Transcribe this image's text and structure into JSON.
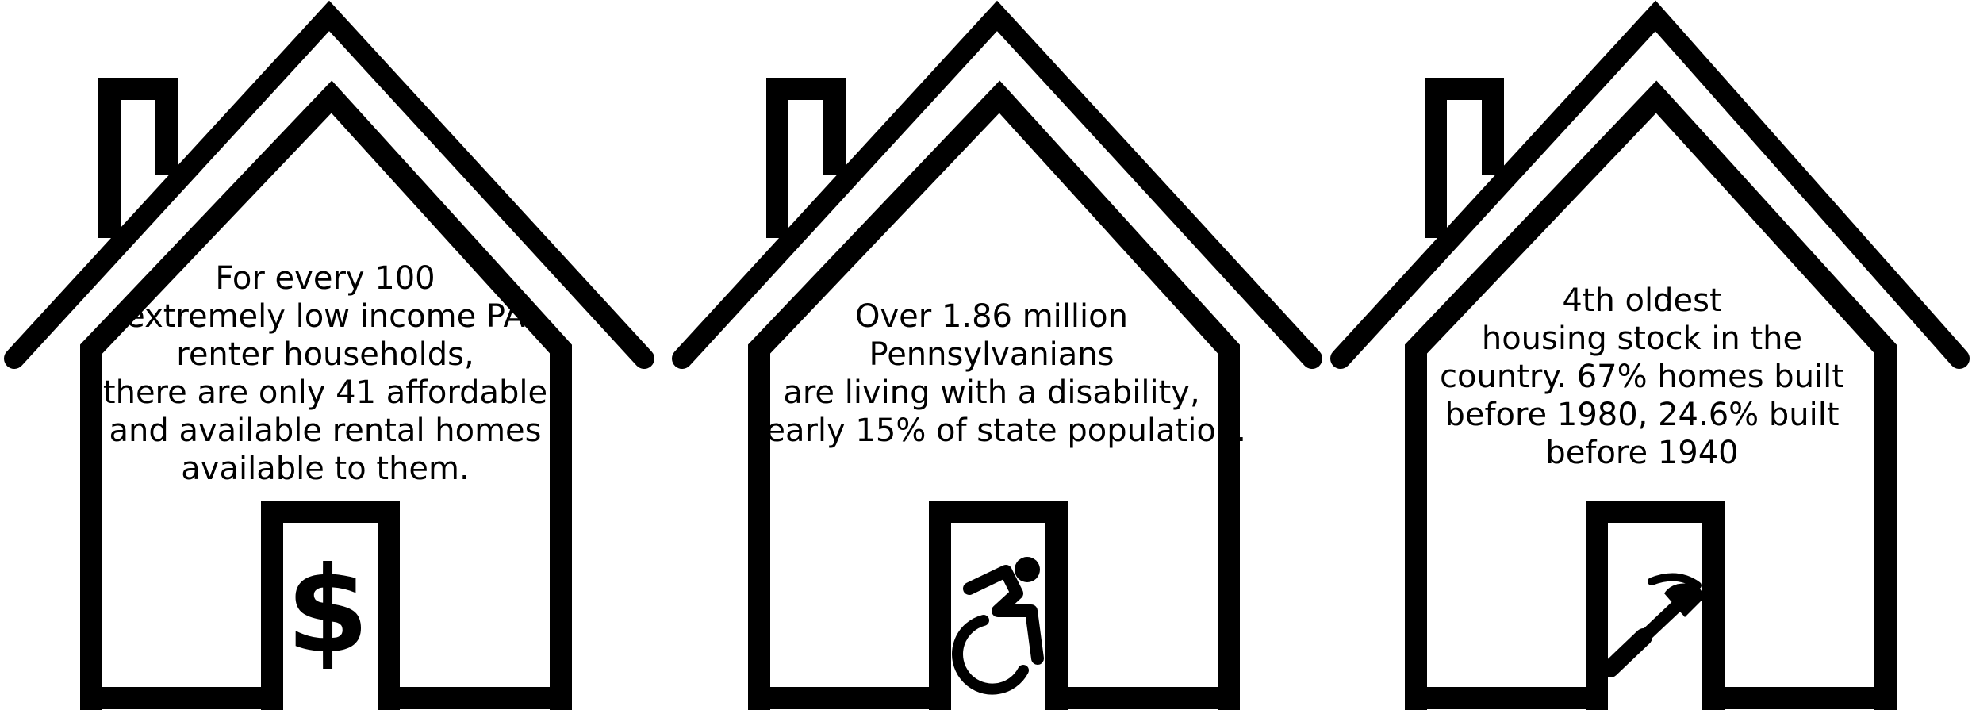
{
  "houses": [
    {
      "caption_lines": [
        "For every 100",
        "extremely low income PA",
        "renter households,",
        "there are only 41 affordable",
        "and available rental homes",
        "available to them."
      ],
      "door_icon": "dollar-sign-icon",
      "door_symbol": "$"
    },
    {
      "caption_lines": [
        "Over 1.86 million",
        "Pennsylvanians",
        "are living with a disability,",
        "nearly 15% of state population."
      ],
      "door_icon": "wheelchair-accessibility-icon"
    },
    {
      "caption_lines": [
        "4th oldest",
        "housing stock in the",
        "country. 67% homes built",
        "before 1980, 24.6% built",
        "before 1940"
      ],
      "door_icon": "hammer-icon"
    }
  ],
  "colors": {
    "stroke": "#000000",
    "background": "#ffffff"
  }
}
